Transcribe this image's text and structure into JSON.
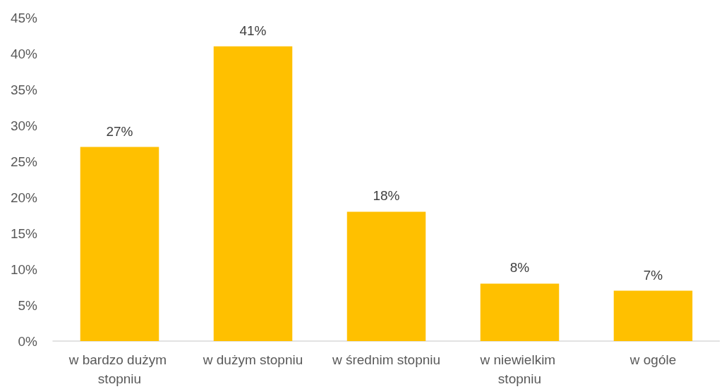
{
  "chart_data": {
    "type": "bar",
    "categories": [
      "w bardzo dużym stopniu",
      "w dużym stopniu",
      "w średnim stopniu",
      "w niewielkim stopniu",
      "w ogóle"
    ],
    "values": [
      27,
      41,
      18,
      8,
      7
    ],
    "color": "#ffc000",
    "value_labels": [
      "27%",
      "41%",
      "18%",
      "8%",
      "7%"
    ],
    "ylim": [
      0,
      45
    ],
    "yticks": [
      {
        "value": 0,
        "label": "0%"
      },
      {
        "value": 5,
        "label": "5%"
      },
      {
        "value": 10,
        "label": "10%"
      },
      {
        "value": 15,
        "label": "15%"
      },
      {
        "value": 20,
        "label": "20%"
      },
      {
        "value": 25,
        "label": "25%"
      },
      {
        "value": 30,
        "label": "30%"
      },
      {
        "value": 35,
        "label": "35%"
      },
      {
        "value": 40,
        "label": "40%"
      },
      {
        "value": 45,
        "label": "45%"
      }
    ],
    "grid": false
  }
}
